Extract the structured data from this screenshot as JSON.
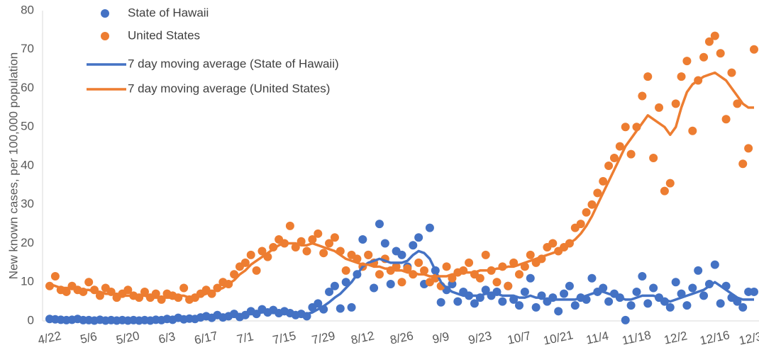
{
  "chart_data": {
    "type": "scatter",
    "y_label": "New known cases, per 100,000 population",
    "categories": [
      "4/22",
      null,
      null,
      null,
      null,
      null,
      null,
      "5/6",
      null,
      null,
      null,
      null,
      null,
      null,
      "5/20",
      null,
      null,
      null,
      null,
      null,
      null,
      "6/3",
      null,
      null,
      null,
      null,
      null,
      null,
      "6/17",
      null,
      null,
      null,
      null,
      null,
      null,
      "7/1",
      null,
      null,
      null,
      null,
      null,
      null,
      "7/15",
      null,
      null,
      null,
      null,
      null,
      null,
      "7/29",
      null,
      null,
      null,
      null,
      null,
      null,
      "8/12",
      null,
      null,
      null,
      null,
      null,
      null,
      "8/26",
      null,
      null,
      null,
      null,
      null,
      null,
      "9/9",
      null,
      null,
      null,
      null,
      null,
      null,
      "9/23",
      null,
      null,
      null,
      null,
      null,
      null,
      "10/7",
      null,
      null,
      null,
      null,
      null,
      null,
      "10/21",
      null,
      null,
      null,
      null,
      null,
      null,
      "11/4",
      null,
      null,
      null,
      null,
      null,
      null,
      "11/18",
      null,
      null,
      null,
      null,
      null,
      null,
      "12/2",
      null,
      null,
      null,
      null,
      null,
      null,
      "12/16",
      null,
      null,
      null,
      null,
      null,
      null,
      "12/30"
    ],
    "ylim": [
      0,
      80
    ],
    "yticks": [
      0,
      10,
      20,
      30,
      40,
      50,
      60,
      70,
      80
    ],
    "grid": false,
    "legend": "top-left",
    "series": [
      {
        "name": "State of Hawaii",
        "type": "scatter",
        "color": "#4472c4",
        "values": [
          0.5,
          0.4,
          0.3,
          0.2,
          0.3,
          0.5,
          0.2,
          0.2,
          0.1,
          0.3,
          0.1,
          0.2,
          0.1,
          0.2,
          0.1,
          0.2,
          0.1,
          0.2,
          0.1,
          0.3,
          0.2,
          0.5,
          0.3,
          0.8,
          0.4,
          0.6,
          0.5,
          0.9,
          1.2,
          0.8,
          1.5,
          0.9,
          1.2,
          1.8,
          1.0,
          1.5,
          2.5,
          1.8,
          3.0,
          2.2,
          2.8,
          2.0,
          2.5,
          2.0,
          1.5,
          1.8,
          1.2,
          3.5,
          4.5,
          3.0,
          7.5,
          9.0,
          3.2,
          10.0,
          3.5,
          12.0,
          21.0,
          17.0,
          8.5,
          25.0,
          20.0,
          9.5,
          18.0,
          17.0,
          14.0,
          19.5,
          21.5,
          9.5,
          24.0,
          13.0,
          4.8,
          8.0,
          9.5,
          5.0,
          7.5,
          6.5,
          4.5,
          6.0,
          8.0,
          6.5,
          7.5,
          5.0,
          9.0,
          5.5,
          4.0,
          7.5,
          11.0,
          3.5,
          6.5,
          5.0,
          6.0,
          2.5,
          7.0,
          9.0,
          4.0,
          6.0,
          5.5,
          11.0,
          7.5,
          8.5,
          5.0,
          7.0,
          6.0,
          0.2,
          4.0,
          7.5,
          11.5,
          4.5,
          8.5,
          6.0,
          5.0,
          3.5,
          10.0,
          7.0,
          4.0,
          8.5,
          13.0,
          6.5,
          9.5,
          14.5,
          4.5,
          9.0,
          6.0,
          5.0,
          3.5,
          7.5,
          7.5
        ]
      },
      {
        "name": "United States",
        "type": "scatter",
        "color": "#ed7d31",
        "values": [
          9.0,
          11.5,
          8.0,
          7.5,
          9.0,
          8.0,
          7.5,
          10.0,
          8.0,
          6.5,
          8.5,
          7.5,
          6.0,
          7.0,
          8.0,
          6.5,
          6.0,
          7.5,
          6.0,
          7.0,
          5.5,
          7.0,
          6.5,
          6.0,
          8.5,
          5.5,
          6.0,
          7.0,
          8.0,
          7.0,
          8.5,
          10.0,
          9.5,
          12.0,
          14.0,
          15.0,
          17.0,
          13.0,
          18.0,
          16.5,
          19.0,
          21.0,
          20.0,
          24.5,
          19.0,
          20.5,
          18.0,
          21.0,
          22.5,
          17.5,
          20.0,
          21.5,
          18.0,
          13.0,
          17.0,
          16.0,
          14.0,
          17.0,
          15.0,
          12.0,
          16.0,
          13.0,
          14.0,
          10.0,
          13.5,
          12.0,
          15.0,
          13.0,
          10.0,
          11.0,
          9.0,
          14.0,
          11.0,
          12.5,
          13.0,
          15.0,
          12.0,
          11.0,
          17.0,
          13.0,
          10.0,
          14.0,
          9.0,
          15.0,
          12.0,
          14.0,
          17.0,
          15.0,
          16.0,
          19.0,
          20.0,
          18.0,
          19.0,
          20.0,
          24.0,
          25.0,
          28.0,
          30.0,
          33.0,
          36.0,
          40.0,
          42.0,
          45.0,
          50.0,
          43.0,
          50.0,
          58.0,
          63.0,
          42.0,
          55.0,
          33.5,
          35.5,
          56.0,
          63.0,
          67.0,
          49.0,
          62.0,
          68.0,
          72.0,
          73.5,
          69.0,
          52.0,
          64.0,
          56.0,
          40.5,
          44.5,
          70.0
        ]
      },
      {
        "name": "7 day moving average (State of Hawaii)",
        "type": "line",
        "color": "#4472c4",
        "values": [
          0.4,
          0.35,
          0.3,
          0.3,
          0.3,
          0.3,
          0.3,
          0.25,
          0.2,
          0.2,
          0.2,
          0.2,
          0.2,
          0.2,
          0.2,
          0.2,
          0.2,
          0.2,
          0.2,
          0.2,
          0.3,
          0.4,
          0.4,
          0.5,
          0.5,
          0.6,
          0.6,
          0.7,
          0.8,
          0.9,
          1.0,
          1.1,
          1.2,
          1.3,
          1.4,
          1.6,
          1.8,
          2.0,
          2.2,
          2.3,
          2.4,
          2.4,
          2.3,
          2.2,
          2.0,
          1.8,
          1.8,
          2.2,
          3.0,
          3.8,
          4.8,
          6.0,
          7.0,
          8.5,
          10.0,
          12.0,
          14.0,
          15.0,
          15.5,
          16.0,
          15.5,
          15.0,
          15.0,
          15.0,
          15.5,
          17.0,
          18.0,
          17.5,
          16.0,
          13.0,
          10.0,
          8.5,
          7.5,
          7.0,
          6.5,
          6.5,
          6.5,
          6.5,
          7.0,
          7.0,
          7.0,
          6.5,
          6.5,
          6.5,
          6.0,
          6.0,
          6.5,
          6.0,
          6.0,
          5.5,
          5.5,
          5.5,
          5.5,
          5.5,
          5.5,
          6.0,
          6.5,
          7.0,
          7.5,
          7.5,
          7.0,
          6.5,
          6.0,
          5.5,
          5.5,
          6.0,
          6.5,
          6.5,
          6.5,
          6.0,
          5.5,
          5.0,
          5.5,
          6.0,
          6.5,
          7.0,
          7.5,
          8.0,
          9.0,
          10.0,
          9.0,
          8.0,
          7.0,
          6.0,
          5.5,
          5.5,
          5.5
        ]
      },
      {
        "name": "7 day moving average (United States)",
        "type": "line",
        "color": "#ed7d31",
        "values": [
          9.5,
          9.0,
          8.5,
          8.5,
          8.5,
          8.0,
          8.0,
          8.0,
          7.5,
          7.5,
          7.0,
          7.0,
          7.0,
          6.5,
          6.5,
          6.5,
          6.5,
          6.5,
          6.0,
          6.0,
          6.0,
          6.0,
          6.0,
          6.5,
          6.5,
          6.0,
          6.0,
          6.5,
          7.0,
          7.5,
          8.0,
          8.5,
          9.5,
          10.5,
          12.0,
          13.0,
          14.5,
          15.5,
          16.5,
          17.5,
          18.5,
          19.5,
          20.0,
          20.0,
          20.0,
          19.5,
          19.5,
          20.0,
          19.5,
          19.0,
          18.5,
          18.0,
          17.0,
          16.0,
          15.5,
          15.0,
          14.5,
          14.5,
          14.0,
          14.0,
          13.5,
          13.5,
          13.0,
          13.0,
          12.5,
          12.5,
          12.0,
          12.0,
          11.5,
          11.5,
          11.5,
          11.5,
          12.0,
          12.0,
          12.5,
          12.5,
          12.5,
          13.0,
          13.0,
          13.0,
          13.5,
          13.5,
          14.0,
          14.0,
          14.5,
          15.0,
          15.5,
          16.0,
          16.5,
          17.0,
          17.5,
          18.0,
          19.0,
          20.0,
          21.0,
          22.5,
          24.5,
          27.0,
          30.0,
          33.0,
          36.0,
          39.0,
          42.0,
          45.0,
          47.0,
          49.0,
          51.0,
          53.0,
          52.0,
          51.0,
          50.0,
          48.0,
          50.0,
          55.0,
          59.0,
          61.0,
          62.0,
          63.0,
          63.5,
          64.0,
          63.0,
          62.0,
          60.0,
          58.0,
          56.0,
          55.0,
          55.0
        ]
      }
    ]
  }
}
